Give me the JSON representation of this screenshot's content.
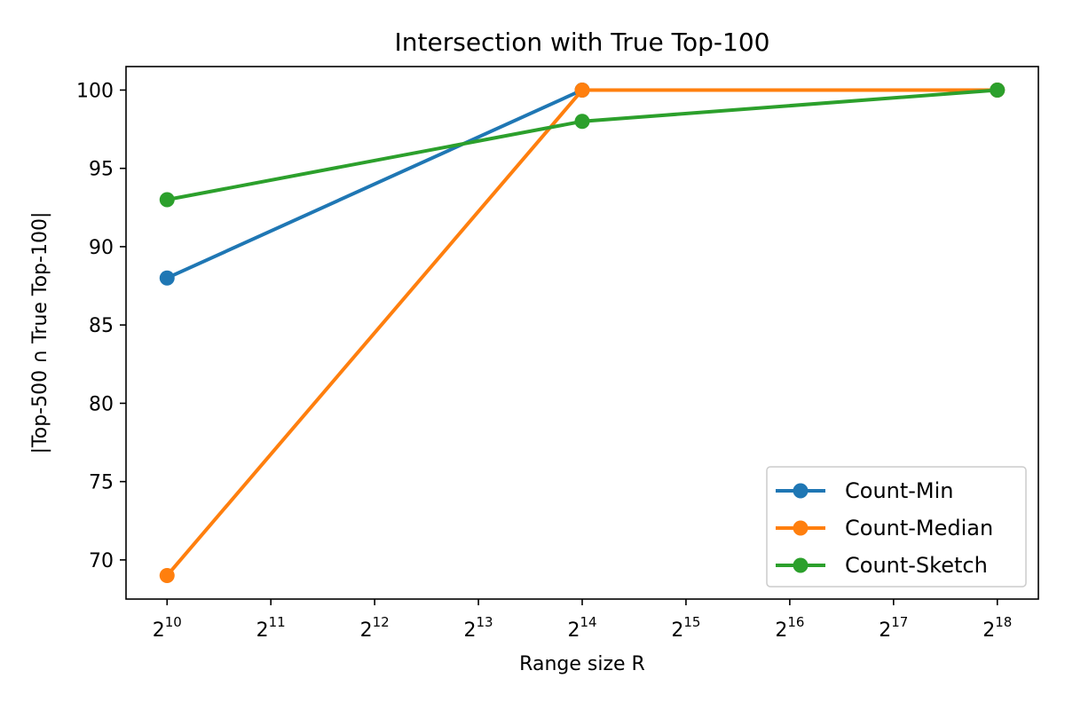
{
  "chart_data": {
    "type": "line",
    "title": "Intersection with True Top-100",
    "xlabel": "Range size R",
    "ylabel": "|Top-500 ∩ True Top-100|",
    "x_scale": "log2",
    "x": [
      1024,
      16384,
      262144
    ],
    "x_ticks": [
      {
        "value": 1024,
        "base": "2",
        "exp": "10"
      },
      {
        "value": 2048,
        "base": "2",
        "exp": "11"
      },
      {
        "value": 4096,
        "base": "2",
        "exp": "12"
      },
      {
        "value": 8192,
        "base": "2",
        "exp": "13"
      },
      {
        "value": 16384,
        "base": "2",
        "exp": "14"
      },
      {
        "value": 32768,
        "base": "2",
        "exp": "15"
      },
      {
        "value": 65536,
        "base": "2",
        "exp": "16"
      },
      {
        "value": 131072,
        "base": "2",
        "exp": "17"
      },
      {
        "value": 262144,
        "base": "2",
        "exp": "18"
      }
    ],
    "y_ticks": [
      70,
      75,
      80,
      85,
      90,
      95,
      100
    ],
    "ylim": [
      67.5,
      101.5
    ],
    "grid": false,
    "legend_position": "lower-right",
    "series": [
      {
        "name": "Count-Min",
        "color": "#1f77b4",
        "values": [
          88,
          100,
          100
        ]
      },
      {
        "name": "Count-Median",
        "color": "#ff7f0e",
        "values": [
          69,
          100,
          100
        ]
      },
      {
        "name": "Count-Sketch",
        "color": "#2ca02c",
        "values": [
          93,
          98,
          100
        ]
      }
    ]
  }
}
